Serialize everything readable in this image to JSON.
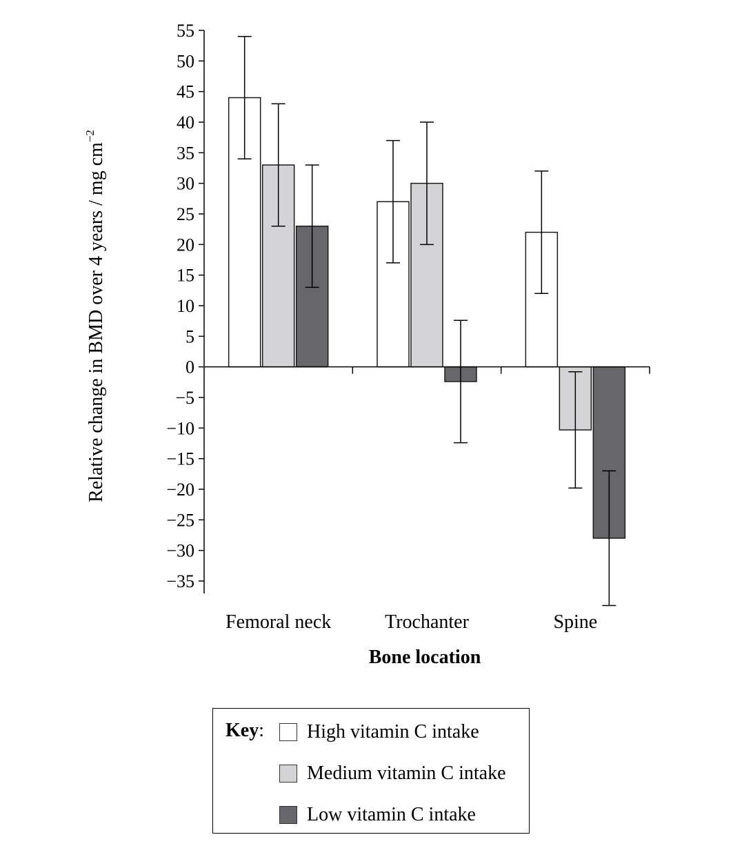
{
  "chart_data": {
    "type": "bar",
    "title": "",
    "xlabel": "Bone location",
    "ylabel": "Relative change in BMD over 4 years / mg cm",
    "ylabel_superscript": "−2",
    "ylim": [
      -35,
      55
    ],
    "yticks": [
      55,
      50,
      45,
      40,
      35,
      30,
      25,
      20,
      15,
      10,
      5,
      0,
      -5,
      -10,
      -15,
      -20,
      -25,
      -30,
      -35
    ],
    "ytick_labels": [
      "55",
      "50",
      "45",
      "40",
      "35",
      "30",
      "25",
      "20",
      "15",
      "10",
      "5",
      "0",
      "−5",
      "−10",
      "−15",
      "−20",
      "−25",
      "−30",
      "−35"
    ],
    "categories": [
      "Femoral neck",
      "Trochanter",
      "Spine"
    ],
    "series": [
      {
        "name": "High vitamin C intake",
        "color": "#ffffff",
        "values": [
          44,
          27,
          22
        ],
        "error": [
          10,
          10,
          10
        ]
      },
      {
        "name": "Medium vitamin C intake",
        "color": "#d4d4d6",
        "values": [
          33,
          30,
          -10.3
        ],
        "error": [
          10,
          10,
          9.5
        ]
      },
      {
        "name": "Low vitamin C intake",
        "color": "#67676b",
        "values": [
          23,
          -2.4,
          -28
        ],
        "error": [
          10,
          10,
          11
        ]
      }
    ],
    "grid": false,
    "legend_position": "bottom"
  },
  "legend": {
    "key_label": "Key",
    "key_suffix": ":",
    "items": [
      {
        "label": "High vitamin C intake",
        "color": "#ffffff"
      },
      {
        "label": "Medium vitamin C intake",
        "color": "#d4d4d6"
      },
      {
        "label": "Low vitamin C intake",
        "color": "#67676b"
      }
    ]
  }
}
